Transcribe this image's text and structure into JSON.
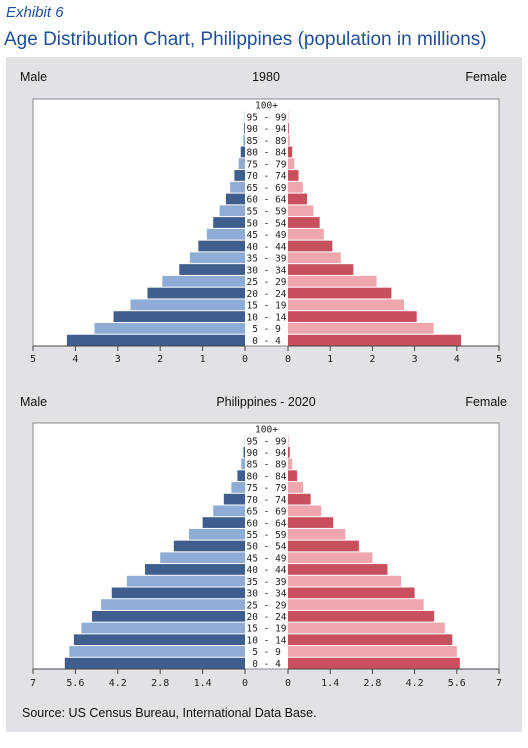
{
  "header": {
    "exhibit": "Exhibit 6",
    "title": "Age Distribution Chart, Philippines (population in millions)"
  },
  "source": "Source: US Census Bureau, International Data Base.",
  "colors": {
    "male_dark": "#3f5e8e",
    "male_light": "#8eacd6",
    "female_dark": "#c8505e",
    "female_light": "#f0a6ad",
    "panel_bg": "#e2e2e6",
    "title_blue": "#1f4e9c"
  },
  "chart_data": [
    {
      "type": "bar",
      "orientation": "horizontal-population-pyramid",
      "title": "1980",
      "left_label": "Male",
      "right_label": "Female",
      "categories": [
        "0 - 4",
        "5 - 9",
        "10 - 14",
        "15 - 19",
        "20 - 24",
        "25 - 29",
        "30 - 34",
        "35 - 39",
        "40 - 44",
        "45 - 49",
        "50 - 54",
        "55 - 59",
        "60 - 64",
        "65 - 69",
        "70 - 74",
        "75 - 79",
        "80 - 84",
        "85 - 89",
        "90 - 94",
        "95 - 99",
        "100+"
      ],
      "series": [
        {
          "name": "Male",
          "values": [
            4.2,
            3.55,
            3.1,
            2.7,
            2.3,
            1.95,
            1.55,
            1.3,
            1.1,
            0.9,
            0.75,
            0.6,
            0.45,
            0.35,
            0.25,
            0.15,
            0.1,
            0.04,
            0.02,
            0.01,
            0.0
          ]
        },
        {
          "name": "Female",
          "values": [
            4.1,
            3.45,
            3.05,
            2.75,
            2.45,
            2.1,
            1.55,
            1.25,
            1.05,
            0.85,
            0.75,
            0.6,
            0.45,
            0.35,
            0.25,
            0.15,
            0.1,
            0.04,
            0.02,
            0.01,
            0.0
          ]
        }
      ],
      "xlim": [
        0,
        5
      ],
      "ticks_left": [
        "5",
        "4",
        "3",
        "2",
        "1",
        "0"
      ],
      "ticks_right": [
        "0",
        "1",
        "2",
        "3",
        "4",
        "5"
      ]
    },
    {
      "type": "bar",
      "orientation": "horizontal-population-pyramid",
      "title": "Philippines - 2020",
      "left_label": "Male",
      "right_label": "Female",
      "categories": [
        "0 - 4",
        "5 - 9",
        "10 - 14",
        "15 - 19",
        "20 - 24",
        "25 - 29",
        "30 - 34",
        "35 - 39",
        "40 - 44",
        "45 - 49",
        "50 - 54",
        "55 - 59",
        "60 - 64",
        "65 - 69",
        "70 - 74",
        "75 - 79",
        "80 - 84",
        "85 - 89",
        "90 - 94",
        "95 - 99",
        "100+"
      ],
      "series": [
        {
          "name": "Male",
          "values": [
            5.95,
            5.8,
            5.65,
            5.4,
            5.05,
            4.75,
            4.4,
            3.9,
            3.3,
            2.8,
            2.35,
            1.85,
            1.4,
            1.05,
            0.7,
            0.45,
            0.25,
            0.12,
            0.05,
            0.01,
            0.0
          ]
        },
        {
          "name": "Female",
          "values": [
            5.7,
            5.6,
            5.45,
            5.2,
            4.85,
            4.5,
            4.2,
            3.75,
            3.3,
            2.8,
            2.35,
            1.9,
            1.5,
            1.1,
            0.75,
            0.5,
            0.3,
            0.14,
            0.06,
            0.02,
            0.0
          ]
        }
      ],
      "xlim": [
        0,
        7
      ],
      "ticks_left": [
        "7",
        "5.6",
        "4.2",
        "2.8",
        "1.4",
        "0"
      ],
      "ticks_right": [
        "0",
        "1.4",
        "2.8",
        "4.2",
        "5.6",
        "7"
      ]
    }
  ]
}
